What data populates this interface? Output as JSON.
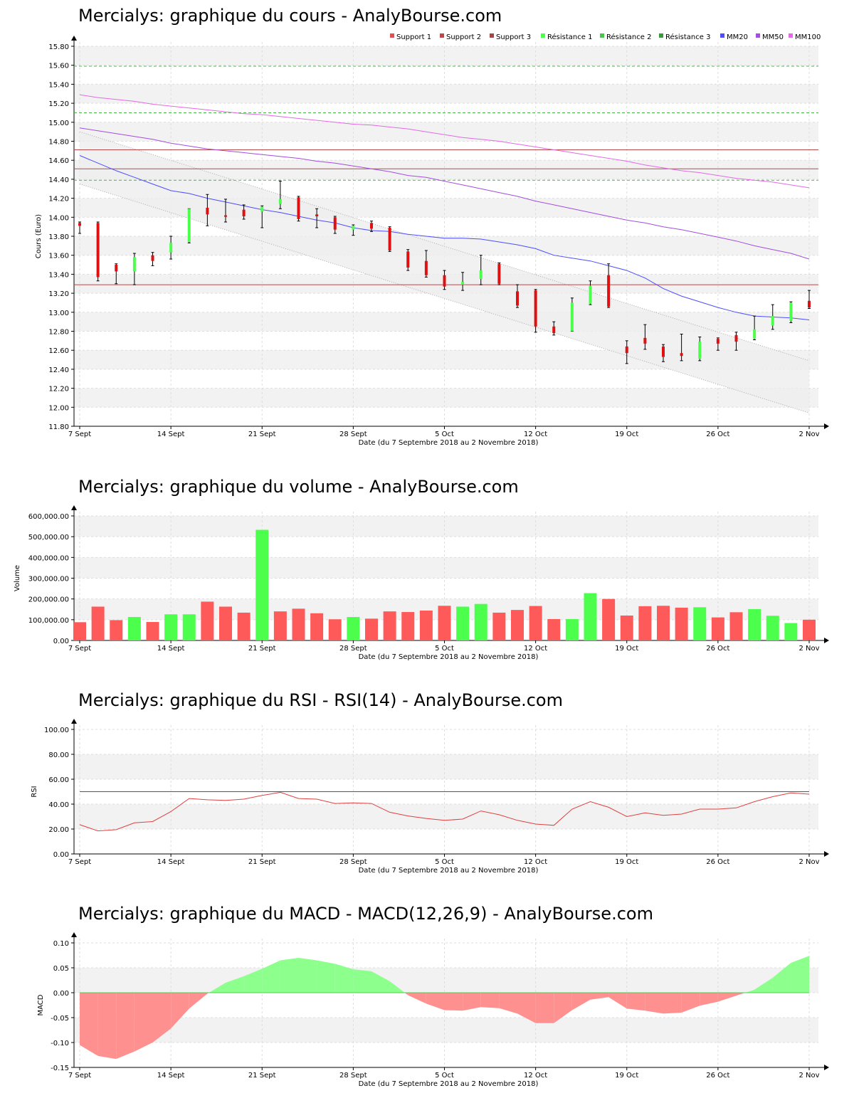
{
  "x_ticks": [
    {
      "label": "7 Sept",
      "idx": 0
    },
    {
      "label": "14 Sept",
      "idx": 5
    },
    {
      "label": "21 Sept",
      "idx": 10
    },
    {
      "label": "28 Sept",
      "idx": 15
    },
    {
      "label": "5 Oct",
      "idx": 20
    },
    {
      "label": "12 Oct",
      "idx": 25
    },
    {
      "label": "19 Oct",
      "idx": 30
    },
    {
      "label": "26 Oct",
      "idx": 35
    },
    {
      "label": "2 Nov",
      "idx": 40
    }
  ],
  "xlabel": "Date (du 7 Septembre 2018 au 2 Novembre 2018)",
  "colors": {
    "up": "#4dff4d",
    "down": "#ff5a5a",
    "support": "#b84a4a",
    "resistance": "#49b649",
    "mm20": "#4d4dff",
    "mm50": "#a34de0",
    "mm100": "#e36ae3",
    "rsi": "#e04040",
    "grid": "#dddddd",
    "band": "#f2f2f2"
  },
  "chart_data": [
    {
      "id": "price",
      "type": "candlestick",
      "title": "Mercialys: graphique du cours - AnalyBourse.com",
      "ylabel": "Cours (Euro)",
      "ylim": [
        11.8,
        15.8
      ],
      "yticks": [
        "11.80",
        "12.00",
        "12.20",
        "12.40",
        "12.60",
        "12.80",
        "13.00",
        "13.20",
        "13.40",
        "13.60",
        "13.80",
        "14.00",
        "14.20",
        "14.40",
        "14.60",
        "14.80",
        "15.00",
        "15.20",
        "15.40",
        "15.60",
        "15.80"
      ],
      "legend": [
        "Support 1",
        "Support 2",
        "Support 3",
        "Résistance 1",
        "Résistance 2",
        "Résistance 3",
        "MM20",
        "MM50",
        "MM100"
      ],
      "legend_colors": [
        "#e05050",
        "#b84a4a",
        "#a04848",
        "#4dff4d",
        "#49c649",
        "#3a9a3a",
        "#4d4dff",
        "#a34de0",
        "#e36ae3"
      ],
      "candles": [
        {
          "o": 13.94,
          "h": 13.95,
          "l": 13.83,
          "c": 13.91
        },
        {
          "o": 13.94,
          "h": 13.95,
          "l": 13.33,
          "c": 13.37
        },
        {
          "o": 13.5,
          "h": 13.51,
          "l": 13.3,
          "c": 13.43
        },
        {
          "o": 13.43,
          "h": 13.62,
          "l": 13.29,
          "c": 13.58
        },
        {
          "o": 13.6,
          "h": 13.63,
          "l": 13.49,
          "c": 13.54
        },
        {
          "o": 13.63,
          "h": 13.8,
          "l": 13.56,
          "c": 13.73
        },
        {
          "o": 13.74,
          "h": 14.09,
          "l": 13.73,
          "c": 14.09
        },
        {
          "o": 14.1,
          "h": 14.24,
          "l": 13.91,
          "c": 14.03
        },
        {
          "o": 14.02,
          "h": 14.19,
          "l": 13.95,
          "c": 14.01
        },
        {
          "o": 14.08,
          "h": 14.13,
          "l": 13.98,
          "c": 14.01
        },
        {
          "o": 14.06,
          "h": 14.12,
          "l": 13.89,
          "c": 14.11
        },
        {
          "o": 14.14,
          "h": 14.38,
          "l": 14.09,
          "c": 14.19
        },
        {
          "o": 14.21,
          "h": 14.22,
          "l": 13.96,
          "c": 13.98
        },
        {
          "o": 14.03,
          "h": 14.09,
          "l": 13.89,
          "c": 14.01
        },
        {
          "o": 14.0,
          "h": 14.01,
          "l": 13.83,
          "c": 13.87
        },
        {
          "o": 13.87,
          "h": 13.92,
          "l": 13.81,
          "c": 13.91
        },
        {
          "o": 13.94,
          "h": 13.96,
          "l": 13.85,
          "c": 13.88
        },
        {
          "o": 13.89,
          "h": 13.9,
          "l": 13.64,
          "c": 13.65
        },
        {
          "o": 13.64,
          "h": 13.66,
          "l": 13.44,
          "c": 13.47
        },
        {
          "o": 13.54,
          "h": 13.65,
          "l": 13.37,
          "c": 13.39
        },
        {
          "o": 13.39,
          "h": 13.44,
          "l": 13.24,
          "c": 13.27
        },
        {
          "o": 13.29,
          "h": 13.42,
          "l": 13.23,
          "c": 13.32
        },
        {
          "o": 13.35,
          "h": 13.6,
          "l": 13.29,
          "c": 13.44
        },
        {
          "o": 13.51,
          "h": 13.52,
          "l": 13.29,
          "c": 13.3
        },
        {
          "o": 13.22,
          "h": 13.29,
          "l": 13.05,
          "c": 13.07
        },
        {
          "o": 13.23,
          "h": 13.24,
          "l": 12.79,
          "c": 12.85
        },
        {
          "o": 12.85,
          "h": 12.9,
          "l": 12.76,
          "c": 12.78
        },
        {
          "o": 12.8,
          "h": 13.15,
          "l": 12.8,
          "c": 13.1
        },
        {
          "o": 13.09,
          "h": 13.33,
          "l": 13.08,
          "c": 13.28
        },
        {
          "o": 13.39,
          "h": 13.51,
          "l": 13.05,
          "c": 13.06
        },
        {
          "o": 12.64,
          "h": 12.7,
          "l": 12.46,
          "c": 12.57
        },
        {
          "o": 12.73,
          "h": 12.87,
          "l": 12.61,
          "c": 12.67
        },
        {
          "o": 12.64,
          "h": 12.66,
          "l": 12.48,
          "c": 12.53
        },
        {
          "o": 12.57,
          "h": 12.77,
          "l": 12.49,
          "c": 12.54
        },
        {
          "o": 12.51,
          "h": 12.74,
          "l": 12.49,
          "c": 12.69
        },
        {
          "o": 12.72,
          "h": 12.73,
          "l": 12.6,
          "c": 12.67
        },
        {
          "o": 12.76,
          "h": 12.79,
          "l": 12.6,
          "c": 12.69
        },
        {
          "o": 12.72,
          "h": 12.96,
          "l": 12.71,
          "c": 12.82
        },
        {
          "o": 12.86,
          "h": 13.08,
          "l": 12.82,
          "c": 12.96
        },
        {
          "o": 12.91,
          "h": 13.11,
          "l": 12.89,
          "c": 13.1
        },
        {
          "o": 13.12,
          "h": 13.23,
          "l": 13.04,
          "c": 13.05
        }
      ],
      "supports": [
        13.29,
        14.51,
        14.71
      ],
      "resistances": [
        14.39,
        15.1,
        15.59
      ],
      "mm20": [
        14.65,
        14.57,
        14.49,
        14.42,
        14.35,
        14.28,
        14.25,
        14.2,
        14.16,
        14.12,
        14.08,
        14.05,
        14.01,
        13.97,
        13.94,
        13.89,
        13.86,
        13.85,
        13.82,
        13.8,
        13.78,
        13.78,
        13.77,
        13.74,
        13.71,
        13.67,
        13.6,
        13.57,
        13.54,
        13.49,
        13.44,
        13.36,
        13.25,
        13.17,
        13.11,
        13.05,
        13.0,
        12.96,
        12.95,
        12.94,
        12.92
      ],
      "mm50": [
        14.94,
        14.91,
        14.88,
        14.85,
        14.82,
        14.78,
        14.75,
        14.72,
        14.7,
        14.68,
        14.66,
        14.64,
        14.62,
        14.59,
        14.57,
        14.54,
        14.51,
        14.48,
        14.44,
        14.42,
        14.38,
        14.34,
        14.3,
        14.26,
        14.22,
        14.17,
        14.13,
        14.09,
        14.05,
        14.01,
        13.97,
        13.94,
        13.9,
        13.87,
        13.83,
        13.79,
        13.75,
        13.7,
        13.66,
        13.62,
        13.56
      ],
      "mm100": [
        15.29,
        15.26,
        15.24,
        15.22,
        15.19,
        15.17,
        15.15,
        15.13,
        15.11,
        15.09,
        15.08,
        15.06,
        15.04,
        15.02,
        15.0,
        14.98,
        14.97,
        14.95,
        14.93,
        14.9,
        14.87,
        14.84,
        14.82,
        14.8,
        14.77,
        14.74,
        14.71,
        14.68,
        14.65,
        14.62,
        14.59,
        14.55,
        14.52,
        14.49,
        14.47,
        14.44,
        14.41,
        14.39,
        14.37,
        14.34,
        14.31
      ],
      "channel_upper": [
        14.9,
        12.49
      ],
      "channel_lower": [
        14.35,
        11.94
      ],
      "grid": true
    },
    {
      "id": "volume",
      "type": "bar",
      "title": "Mercialys: graphique du volume - AnalyBourse.com",
      "ylabel": "Volume",
      "ylim": [
        0,
        600000
      ],
      "yticks": [
        "0.00",
        "100,000.00",
        "200,000.00",
        "300,000.00",
        "400,000.00",
        "500,000.00",
        "600,000.00"
      ],
      "values": [
        88000,
        163000,
        98000,
        113000,
        89000,
        126000,
        126000,
        187000,
        163000,
        134000,
        533000,
        140000,
        153000,
        131000,
        102000,
        113000,
        105000,
        140000,
        137000,
        144000,
        167000,
        163000,
        176000,
        134000,
        147000,
        166000,
        103000,
        103000,
        228000,
        200000,
        120000,
        165000,
        167000,
        158000,
        160000,
        111000,
        136000,
        151000,
        119000,
        84000,
        100000
      ],
      "up": [
        false,
        false,
        false,
        true,
        false,
        true,
        true,
        false,
        false,
        false,
        true,
        false,
        false,
        false,
        false,
        true,
        false,
        false,
        false,
        false,
        false,
        true,
        true,
        false,
        false,
        false,
        false,
        true,
        true,
        false,
        false,
        false,
        false,
        false,
        true,
        false,
        false,
        true,
        true,
        true,
        false
      ],
      "grid": true
    },
    {
      "id": "rsi",
      "type": "line",
      "title": "Mercialys: graphique du RSI - RSI(14) - AnalyBourse.com",
      "ylabel": "RSI",
      "ylim": [
        0,
        100
      ],
      "yticks": [
        "0.00",
        "20.00",
        "40.00",
        "60.00",
        "80.00",
        "100.00"
      ],
      "reference": 50,
      "values": [
        23.5,
        18.5,
        19.5,
        25.0,
        26.0,
        34.0,
        44.5,
        43.5,
        43.0,
        44.0,
        47.0,
        49.5,
        44.5,
        44.0,
        40.5,
        41.0,
        40.5,
        33.5,
        30.5,
        28.5,
        27.0,
        28.0,
        34.5,
        31.5,
        27.0,
        24.0,
        23.0,
        36.0,
        42.0,
        37.5,
        30.0,
        33.0,
        31.0,
        32.0,
        36.0,
        36.0,
        37.0,
        42.0,
        46.0,
        49.0,
        48.0
      ],
      "grid": true
    },
    {
      "id": "macd",
      "type": "area",
      "title": "Mercialys: graphique du MACD - MACD(12,26,9) - AnalyBourse.com",
      "ylabel": "MACD",
      "ylim": [
        -0.15,
        0.1
      ],
      "yticks": [
        "-0.15",
        "-0.10",
        "-0.05",
        "0.00",
        "0.05",
        "0.10"
      ],
      "values": [
        -0.105,
        -0.127,
        -0.133,
        -0.118,
        -0.1,
        -0.072,
        -0.032,
        -0.002,
        0.02,
        0.033,
        0.048,
        0.065,
        0.07,
        0.065,
        0.058,
        0.047,
        0.043,
        0.023,
        -0.005,
        -0.022,
        -0.035,
        -0.036,
        -0.029,
        -0.031,
        -0.042,
        -0.061,
        -0.061,
        -0.035,
        -0.014,
        -0.009,
        -0.032,
        -0.036,
        -0.042,
        -0.04,
        -0.026,
        -0.018,
        -0.006,
        0.006,
        0.03,
        0.06,
        0.074
      ],
      "grid": true
    }
  ]
}
